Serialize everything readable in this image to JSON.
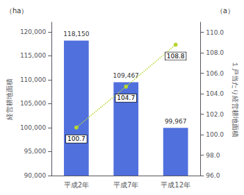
{
  "chart_data": {
    "type": "bar",
    "categories": [
      "平成2年",
      "平成7年",
      "平成12年"
    ],
    "ylabel": "経営耕地面積",
    "y2label": "１戸当たり経営耕地面積",
    "annotations": [
      "（ha）",
      "（a）"
    ],
    "series": [
      {
        "type": "bar",
        "values": [
          118150,
          109467,
          99967
        ],
        "value_labels": [
          "118,150",
          "109,467",
          "99,967"
        ],
        "data_labels": true
      },
      {
        "type": "line",
        "axis": "y2",
        "values": [
          100.7,
          104.7,
          108.8
        ],
        "data_labels": true,
        "line_style": "dotted",
        "marker": "circle"
      }
    ],
    "ylim": [
      90000,
      122000
    ],
    "yticks": [
      {
        "value": 90000,
        "label": "90,000"
      },
      {
        "value": 95000,
        "label": "95,000"
      },
      {
        "value": 100000,
        "label": "100,000"
      },
      {
        "value": 105000,
        "label": "105,000"
      },
      {
        "value": 110000,
        "label": "110,000"
      },
      {
        "value": 115000,
        "label": "115,000"
      },
      {
        "value": 120000,
        "label": "120,000"
      }
    ],
    "y2lim": [
      96.0,
      111.0
    ],
    "y2ticks": [
      {
        "value": 96.0,
        "label": "96.0"
      },
      {
        "value": 98.0,
        "label": "98.0"
      },
      {
        "value": 100.0,
        "label": "100.0"
      },
      {
        "value": 102.0,
        "label": "102.0"
      },
      {
        "value": 104.0,
        "label": "104.0"
      },
      {
        "value": 106.0,
        "label": "106.0"
      },
      {
        "value": 108.0,
        "label": "108.0"
      },
      {
        "value": 110.0,
        "label": "110.0"
      }
    ],
    "grid": false
  }
}
